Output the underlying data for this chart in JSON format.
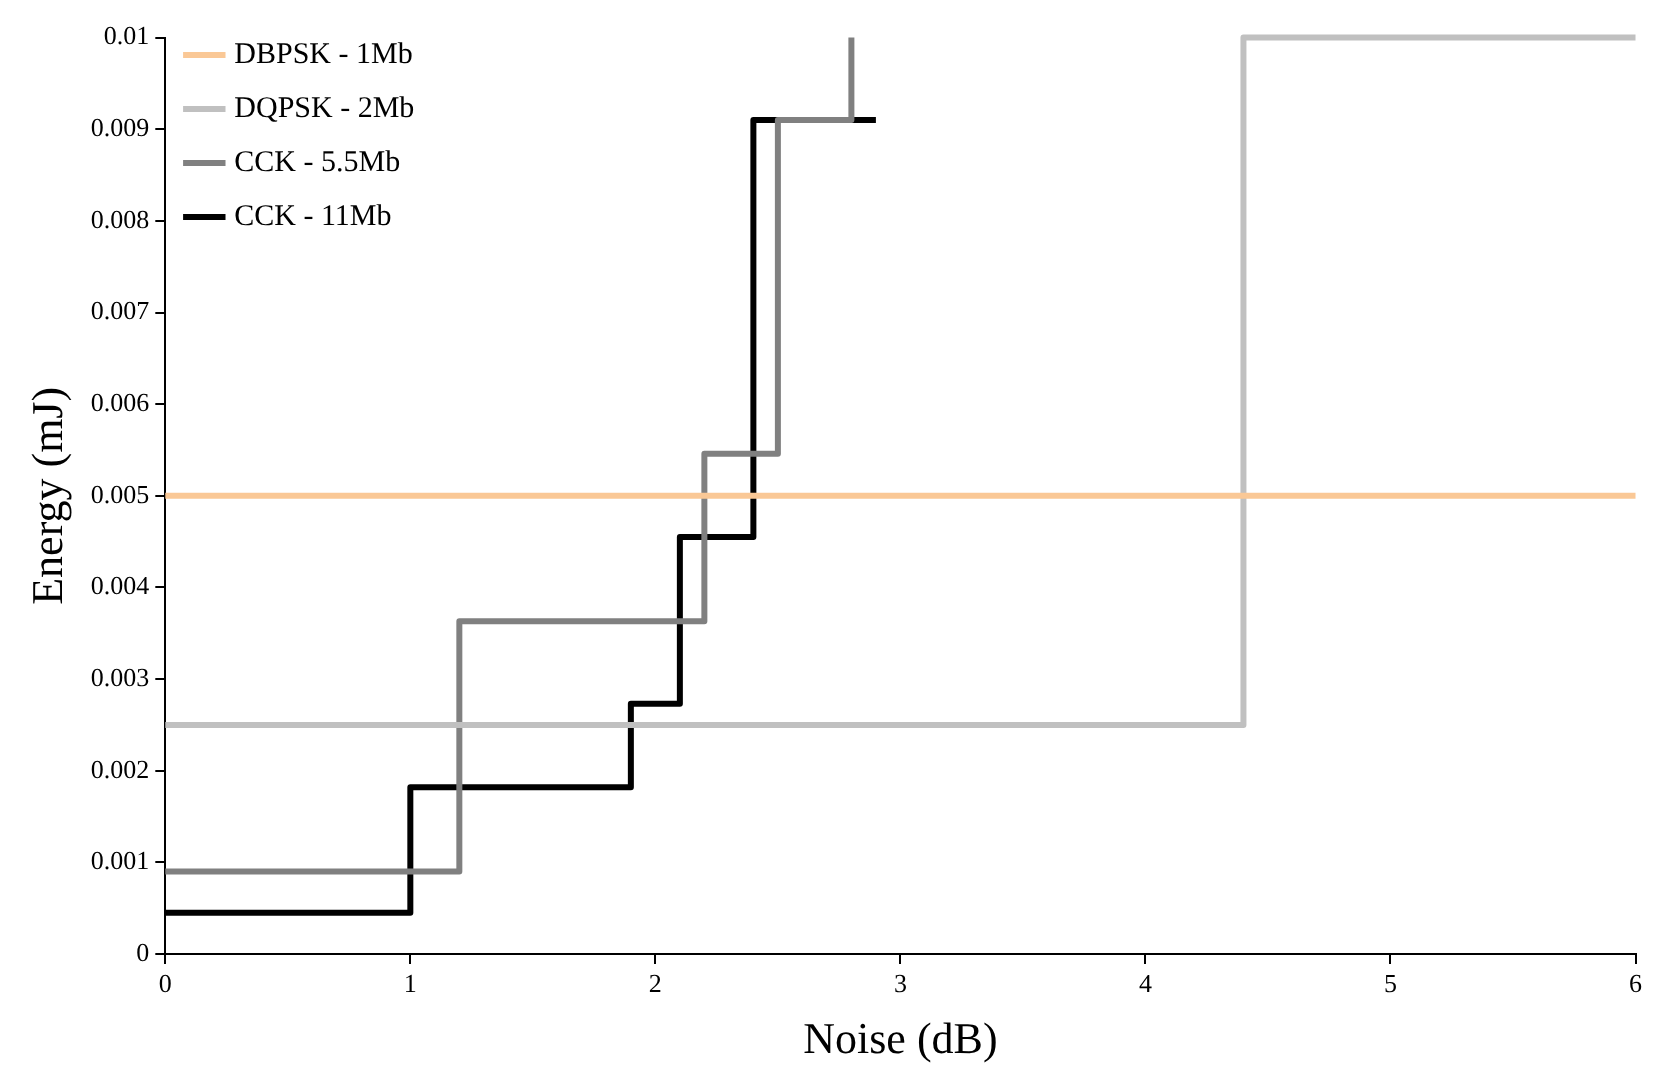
{
  "chart_data": {
    "type": "step",
    "xlabel": "Noise (dB)",
    "ylabel": "Energy (mJ)",
    "xlim": [
      0,
      6
    ],
    "xticks": [
      0,
      1,
      2,
      3,
      4,
      5,
      6
    ],
    "ylim": [
      0,
      0.01
    ],
    "yticks": [
      0,
      0.001,
      0.002,
      0.003,
      0.004,
      0.005,
      0.006,
      0.007,
      0.008,
      0.009,
      0.01
    ],
    "grid": false,
    "legend": "top left",
    "marker": "none",
    "line_style": "solid",
    "series": [
      {
        "name": "DBPSK - 1Mb",
        "color": "#fac896",
        "x": [
          0,
          6
        ],
        "values": [
          0.005,
          0.005
        ]
      },
      {
        "name": "DQPSK - 2Mb",
        "color": "#c0c0c0",
        "x": [
          0,
          4.4,
          6
        ],
        "values": [
          0.0025,
          0.01,
          0.01
        ]
      },
      {
        "name": "CCK - 5.5Mb",
        "color": "#808080",
        "x": [
          0,
          1.2,
          2.2,
          2.5,
          2.8
        ],
        "values": [
          0.0009,
          0.00363,
          0.00546,
          0.0091,
          0.01
        ]
      },
      {
        "name": "CCK - 11Mb",
        "color": "#000000",
        "x": [
          0,
          1,
          1.9,
          2.1,
          2.4,
          2.9
        ],
        "values": [
          0.00045,
          0.00182,
          0.00273,
          0.00455,
          0.0091,
          0.0091
        ]
      }
    ]
  }
}
